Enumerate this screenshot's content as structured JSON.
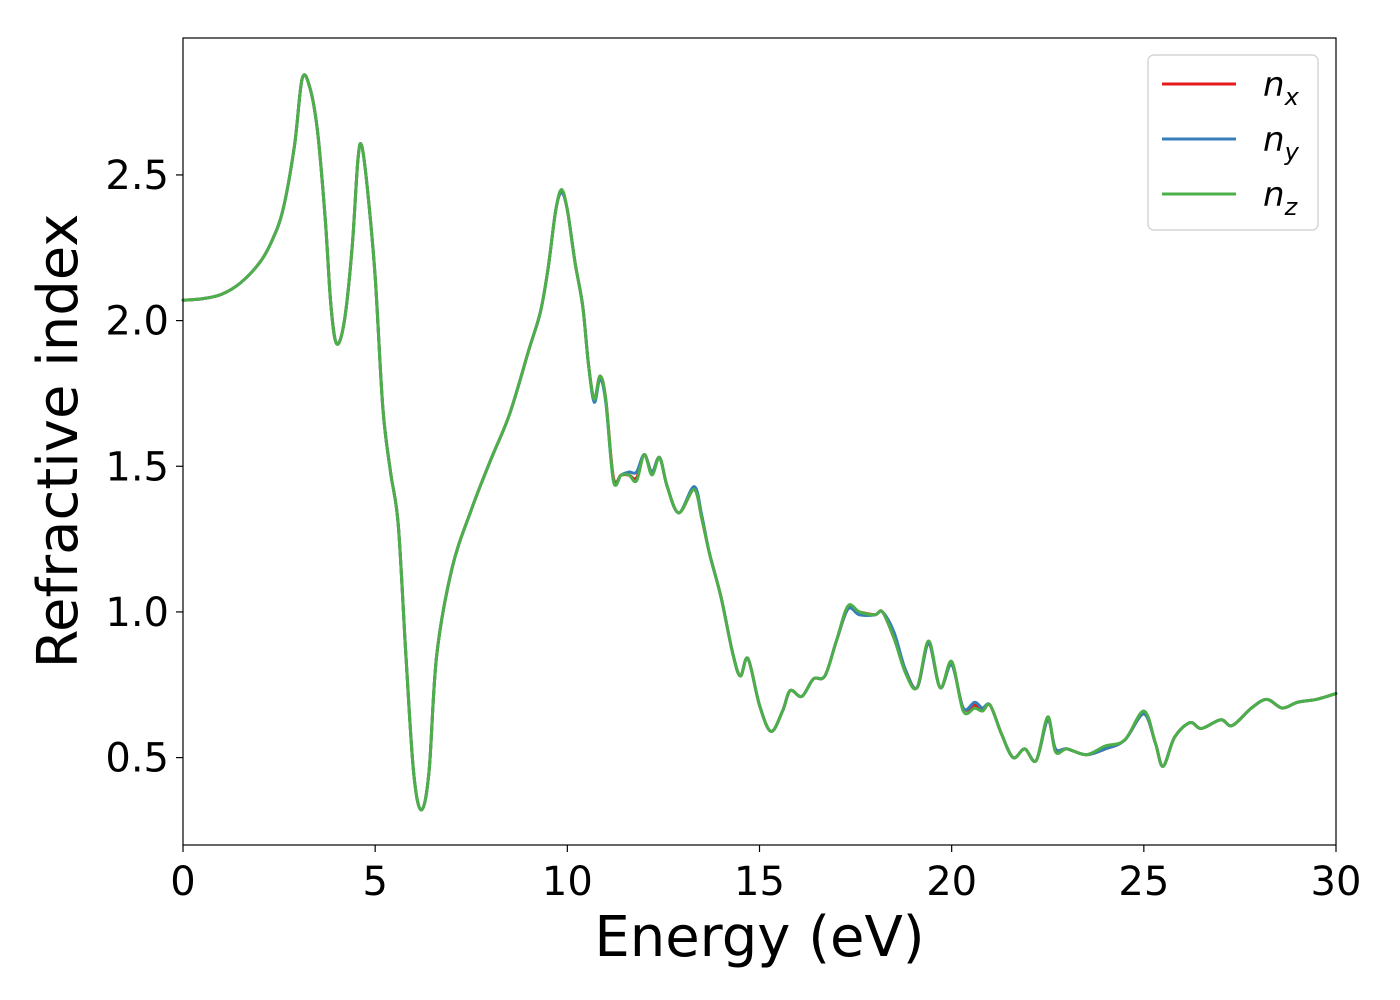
{
  "chart_data": {
    "type": "line",
    "xlabel": "Energy (eV)",
    "ylabel": "Refractive index",
    "xlim": [
      0,
      30
    ],
    "ylim": [
      0.2,
      2.97
    ],
    "xticks": [
      "0",
      "5",
      "10",
      "15",
      "20",
      "25",
      "30"
    ],
    "yticks": [
      "0.5",
      "1.0",
      "1.5",
      "2.0",
      "2.5"
    ],
    "grid": false,
    "legend_position": "top-right",
    "series": [
      {
        "name": "n",
        "subscript": "x",
        "color": "#e41a1c",
        "points": [
          [
            0,
            2.07
          ],
          [
            0.5,
            2.075
          ],
          [
            1,
            2.09
          ],
          [
            1.5,
            2.13
          ],
          [
            2,
            2.2
          ],
          [
            2.3,
            2.27
          ],
          [
            2.6,
            2.38
          ],
          [
            2.9,
            2.6
          ],
          [
            3.1,
            2.83
          ],
          [
            3.3,
            2.8
          ],
          [
            3.5,
            2.65
          ],
          [
            3.7,
            2.35
          ],
          [
            3.85,
            2.05
          ],
          [
            4.0,
            1.92
          ],
          [
            4.2,
            2.0
          ],
          [
            4.4,
            2.25
          ],
          [
            4.55,
            2.55
          ],
          [
            4.65,
            2.6
          ],
          [
            4.8,
            2.45
          ],
          [
            5.0,
            2.15
          ],
          [
            5.2,
            1.7
          ],
          [
            5.4,
            1.48
          ],
          [
            5.6,
            1.3
          ],
          [
            5.8,
            0.85
          ],
          [
            6.0,
            0.45
          ],
          [
            6.2,
            0.32
          ],
          [
            6.4,
            0.45
          ],
          [
            6.6,
            0.85
          ],
          [
            7.0,
            1.15
          ],
          [
            7.5,
            1.35
          ],
          [
            8.0,
            1.52
          ],
          [
            8.5,
            1.68
          ],
          [
            9.0,
            1.9
          ],
          [
            9.3,
            2.03
          ],
          [
            9.5,
            2.18
          ],
          [
            9.7,
            2.38
          ],
          [
            9.85,
            2.44
          ],
          [
            10.0,
            2.38
          ],
          [
            10.2,
            2.2
          ],
          [
            10.4,
            2.05
          ],
          [
            10.55,
            1.85
          ],
          [
            10.7,
            1.73
          ],
          [
            10.85,
            1.81
          ],
          [
            11.0,
            1.73
          ],
          [
            11.2,
            1.46
          ],
          [
            11.4,
            1.47
          ],
          [
            11.6,
            1.47
          ],
          [
            11.8,
            1.46
          ],
          [
            12.0,
            1.54
          ],
          [
            12.2,
            1.48
          ],
          [
            12.4,
            1.53
          ],
          [
            12.6,
            1.43
          ],
          [
            12.9,
            1.34
          ],
          [
            13.3,
            1.42
          ],
          [
            13.5,
            1.32
          ],
          [
            13.7,
            1.2
          ],
          [
            14.0,
            1.05
          ],
          [
            14.3,
            0.86
          ],
          [
            14.5,
            0.78
          ],
          [
            14.7,
            0.84
          ],
          [
            15.0,
            0.68
          ],
          [
            15.3,
            0.59
          ],
          [
            15.6,
            0.66
          ],
          [
            15.8,
            0.73
          ],
          [
            16.1,
            0.71
          ],
          [
            16.4,
            0.77
          ],
          [
            16.7,
            0.78
          ],
          [
            17.0,
            0.9
          ],
          [
            17.3,
            1.01
          ],
          [
            17.6,
            1.0
          ],
          [
            18.0,
            0.99
          ],
          [
            18.2,
            1.0
          ],
          [
            18.5,
            0.91
          ],
          [
            18.8,
            0.8
          ],
          [
            19.1,
            0.74
          ],
          [
            19.4,
            0.89
          ],
          [
            19.7,
            0.74
          ],
          [
            20.0,
            0.82
          ],
          [
            20.3,
            0.67
          ],
          [
            20.6,
            0.68
          ],
          [
            20.8,
            0.66
          ],
          [
            21.0,
            0.68
          ],
          [
            21.3,
            0.58
          ],
          [
            21.6,
            0.5
          ],
          [
            21.9,
            0.53
          ],
          [
            22.2,
            0.49
          ],
          [
            22.5,
            0.63
          ],
          [
            22.7,
            0.53
          ],
          [
            23.0,
            0.53
          ],
          [
            23.5,
            0.51
          ],
          [
            24.0,
            0.53
          ],
          [
            24.5,
            0.56
          ],
          [
            25.0,
            0.65
          ],
          [
            25.3,
            0.55
          ],
          [
            25.5,
            0.47
          ],
          [
            25.8,
            0.57
          ],
          [
            26.2,
            0.62
          ],
          [
            26.5,
            0.6
          ],
          [
            27.0,
            0.63
          ],
          [
            27.3,
            0.61
          ],
          [
            27.8,
            0.67
          ],
          [
            28.2,
            0.7
          ],
          [
            28.6,
            0.67
          ],
          [
            29.0,
            0.69
          ],
          [
            29.5,
            0.7
          ],
          [
            30.0,
            0.72
          ]
        ]
      },
      {
        "name": "n",
        "subscript": "y",
        "color": "#377eb8",
        "points": [
          [
            0,
            2.07
          ],
          [
            0.5,
            2.075
          ],
          [
            1,
            2.09
          ],
          [
            1.5,
            2.13
          ],
          [
            2,
            2.2
          ],
          [
            2.3,
            2.27
          ],
          [
            2.6,
            2.38
          ],
          [
            2.9,
            2.6
          ],
          [
            3.1,
            2.83
          ],
          [
            3.3,
            2.8
          ],
          [
            3.5,
            2.65
          ],
          [
            3.7,
            2.35
          ],
          [
            3.85,
            2.05
          ],
          [
            4.0,
            1.92
          ],
          [
            4.2,
            2.0
          ],
          [
            4.4,
            2.25
          ],
          [
            4.55,
            2.55
          ],
          [
            4.65,
            2.6
          ],
          [
            4.8,
            2.45
          ],
          [
            5.0,
            2.15
          ],
          [
            5.2,
            1.7
          ],
          [
            5.4,
            1.48
          ],
          [
            5.6,
            1.3
          ],
          [
            5.8,
            0.85
          ],
          [
            6.0,
            0.45
          ],
          [
            6.2,
            0.32
          ],
          [
            6.4,
            0.45
          ],
          [
            6.6,
            0.85
          ],
          [
            7.0,
            1.15
          ],
          [
            7.5,
            1.35
          ],
          [
            8.0,
            1.52
          ],
          [
            8.5,
            1.68
          ],
          [
            9.0,
            1.9
          ],
          [
            9.3,
            2.03
          ],
          [
            9.5,
            2.18
          ],
          [
            9.7,
            2.38
          ],
          [
            9.85,
            2.44
          ],
          [
            10.0,
            2.38
          ],
          [
            10.2,
            2.2
          ],
          [
            10.4,
            2.05
          ],
          [
            10.55,
            1.85
          ],
          [
            10.7,
            1.72
          ],
          [
            10.85,
            1.8
          ],
          [
            11.0,
            1.72
          ],
          [
            11.2,
            1.45
          ],
          [
            11.4,
            1.47
          ],
          [
            11.6,
            1.48
          ],
          [
            11.8,
            1.48
          ],
          [
            12.0,
            1.54
          ],
          [
            12.2,
            1.48
          ],
          [
            12.4,
            1.53
          ],
          [
            12.6,
            1.43
          ],
          [
            12.9,
            1.34
          ],
          [
            13.3,
            1.43
          ],
          [
            13.5,
            1.33
          ],
          [
            13.7,
            1.2
          ],
          [
            14.0,
            1.05
          ],
          [
            14.3,
            0.86
          ],
          [
            14.5,
            0.78
          ],
          [
            14.7,
            0.84
          ],
          [
            15.0,
            0.68
          ],
          [
            15.3,
            0.59
          ],
          [
            15.6,
            0.66
          ],
          [
            15.8,
            0.73
          ],
          [
            16.1,
            0.71
          ],
          [
            16.4,
            0.77
          ],
          [
            16.7,
            0.78
          ],
          [
            17.0,
            0.9
          ],
          [
            17.3,
            1.01
          ],
          [
            17.6,
            0.99
          ],
          [
            18.0,
            0.99
          ],
          [
            18.2,
            1.0
          ],
          [
            18.5,
            0.93
          ],
          [
            18.8,
            0.8
          ],
          [
            19.1,
            0.74
          ],
          [
            19.4,
            0.89
          ],
          [
            19.7,
            0.74
          ],
          [
            20.0,
            0.82
          ],
          [
            20.3,
            0.67
          ],
          [
            20.6,
            0.69
          ],
          [
            20.8,
            0.67
          ],
          [
            21.0,
            0.68
          ],
          [
            21.3,
            0.58
          ],
          [
            21.6,
            0.5
          ],
          [
            21.9,
            0.53
          ],
          [
            22.2,
            0.49
          ],
          [
            22.5,
            0.63
          ],
          [
            22.7,
            0.53
          ],
          [
            23.0,
            0.53
          ],
          [
            23.5,
            0.51
          ],
          [
            24.0,
            0.53
          ],
          [
            24.5,
            0.56
          ],
          [
            25.0,
            0.65
          ],
          [
            25.3,
            0.55
          ],
          [
            25.5,
            0.47
          ],
          [
            25.8,
            0.57
          ],
          [
            26.2,
            0.62
          ],
          [
            26.5,
            0.6
          ],
          [
            27.0,
            0.63
          ],
          [
            27.3,
            0.61
          ],
          [
            27.8,
            0.67
          ],
          [
            28.2,
            0.7
          ],
          [
            28.6,
            0.67
          ],
          [
            29.0,
            0.69
          ],
          [
            29.5,
            0.7
          ],
          [
            30.0,
            0.72
          ]
        ]
      },
      {
        "name": "n",
        "subscript": "z",
        "color": "#4daf4a",
        "points": [
          [
            0,
            2.07
          ],
          [
            0.5,
            2.075
          ],
          [
            1,
            2.09
          ],
          [
            1.5,
            2.13
          ],
          [
            2,
            2.2
          ],
          [
            2.3,
            2.27
          ],
          [
            2.6,
            2.38
          ],
          [
            2.9,
            2.6
          ],
          [
            3.1,
            2.83
          ],
          [
            3.3,
            2.8
          ],
          [
            3.5,
            2.65
          ],
          [
            3.7,
            2.35
          ],
          [
            3.85,
            2.05
          ],
          [
            4.0,
            1.92
          ],
          [
            4.2,
            2.0
          ],
          [
            4.4,
            2.25
          ],
          [
            4.55,
            2.55
          ],
          [
            4.65,
            2.6
          ],
          [
            4.8,
            2.45
          ],
          [
            5.0,
            2.15
          ],
          [
            5.2,
            1.7
          ],
          [
            5.4,
            1.48
          ],
          [
            5.6,
            1.3
          ],
          [
            5.8,
            0.85
          ],
          [
            6.0,
            0.45
          ],
          [
            6.2,
            0.32
          ],
          [
            6.4,
            0.45
          ],
          [
            6.6,
            0.85
          ],
          [
            7.0,
            1.15
          ],
          [
            7.5,
            1.35
          ],
          [
            8.0,
            1.52
          ],
          [
            8.5,
            1.68
          ],
          [
            9.0,
            1.9
          ],
          [
            9.3,
            2.03
          ],
          [
            9.5,
            2.18
          ],
          [
            9.7,
            2.38
          ],
          [
            9.85,
            2.45
          ],
          [
            10.0,
            2.38
          ],
          [
            10.2,
            2.2
          ],
          [
            10.4,
            2.05
          ],
          [
            10.55,
            1.85
          ],
          [
            10.7,
            1.73
          ],
          [
            10.85,
            1.81
          ],
          [
            11.0,
            1.73
          ],
          [
            11.2,
            1.45
          ],
          [
            11.4,
            1.47
          ],
          [
            11.6,
            1.47
          ],
          [
            11.8,
            1.45
          ],
          [
            12.0,
            1.54
          ],
          [
            12.2,
            1.47
          ],
          [
            12.4,
            1.53
          ],
          [
            12.6,
            1.43
          ],
          [
            12.9,
            1.34
          ],
          [
            13.3,
            1.42
          ],
          [
            13.5,
            1.32
          ],
          [
            13.7,
            1.2
          ],
          [
            14.0,
            1.05
          ],
          [
            14.3,
            0.86
          ],
          [
            14.5,
            0.78
          ],
          [
            14.7,
            0.84
          ],
          [
            15.0,
            0.68
          ],
          [
            15.3,
            0.59
          ],
          [
            15.6,
            0.66
          ],
          [
            15.8,
            0.73
          ],
          [
            16.1,
            0.71
          ],
          [
            16.4,
            0.77
          ],
          [
            16.7,
            0.78
          ],
          [
            17.0,
            0.9
          ],
          [
            17.3,
            1.02
          ],
          [
            17.6,
            1.0
          ],
          [
            18.0,
            0.99
          ],
          [
            18.2,
            1.0
          ],
          [
            18.5,
            0.91
          ],
          [
            18.8,
            0.79
          ],
          [
            19.1,
            0.74
          ],
          [
            19.4,
            0.9
          ],
          [
            19.7,
            0.74
          ],
          [
            20.0,
            0.83
          ],
          [
            20.3,
            0.66
          ],
          [
            20.6,
            0.67
          ],
          [
            20.8,
            0.66
          ],
          [
            21.0,
            0.68
          ],
          [
            21.3,
            0.58
          ],
          [
            21.6,
            0.5
          ],
          [
            21.9,
            0.53
          ],
          [
            22.2,
            0.49
          ],
          [
            22.5,
            0.64
          ],
          [
            22.7,
            0.52
          ],
          [
            23.0,
            0.53
          ],
          [
            23.5,
            0.51
          ],
          [
            24.0,
            0.54
          ],
          [
            24.5,
            0.56
          ],
          [
            25.0,
            0.66
          ],
          [
            25.3,
            0.55
          ],
          [
            25.5,
            0.47
          ],
          [
            25.8,
            0.57
          ],
          [
            26.2,
            0.62
          ],
          [
            26.5,
            0.6
          ],
          [
            27.0,
            0.63
          ],
          [
            27.3,
            0.61
          ],
          [
            27.8,
            0.67
          ],
          [
            28.2,
            0.7
          ],
          [
            28.6,
            0.67
          ],
          [
            29.0,
            0.69
          ],
          [
            29.5,
            0.7
          ],
          [
            30.0,
            0.72
          ]
        ]
      }
    ]
  }
}
